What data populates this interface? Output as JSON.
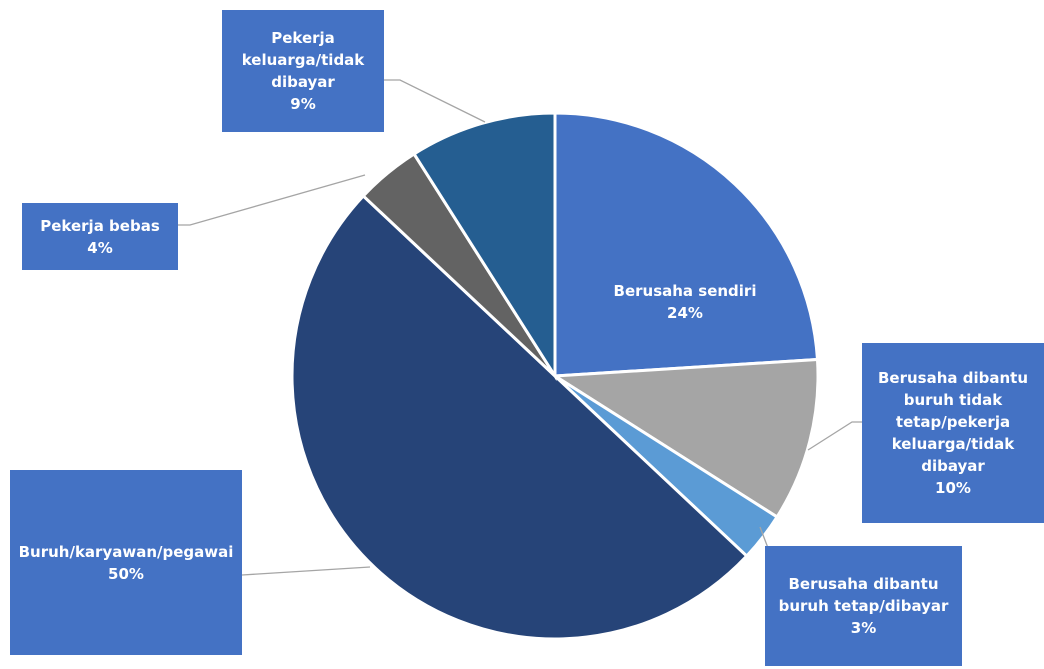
{
  "chart_data": {
    "type": "pie",
    "categories": [
      "Berusaha sendiri",
      "Berusaha dibantu buruh tidak tetap/pekerja keluarga/tidak dibayar",
      "Berusaha dibantu buruh tetap/dibayar",
      "Buruh/karyawan/pegawai",
      "Pekerja bebas",
      "Pekerja keluarga/tidak dibayar"
    ],
    "values": [
      24,
      10,
      3,
      50,
      4,
      9
    ],
    "value_labels": [
      "24%",
      "10%",
      "3%",
      "50%",
      "4%",
      "9%"
    ],
    "colors": [
      "#4472c4",
      "#a5a5a5",
      "#5b9bd5",
      "#264478",
      "#636363",
      "#255e91"
    ]
  }
}
